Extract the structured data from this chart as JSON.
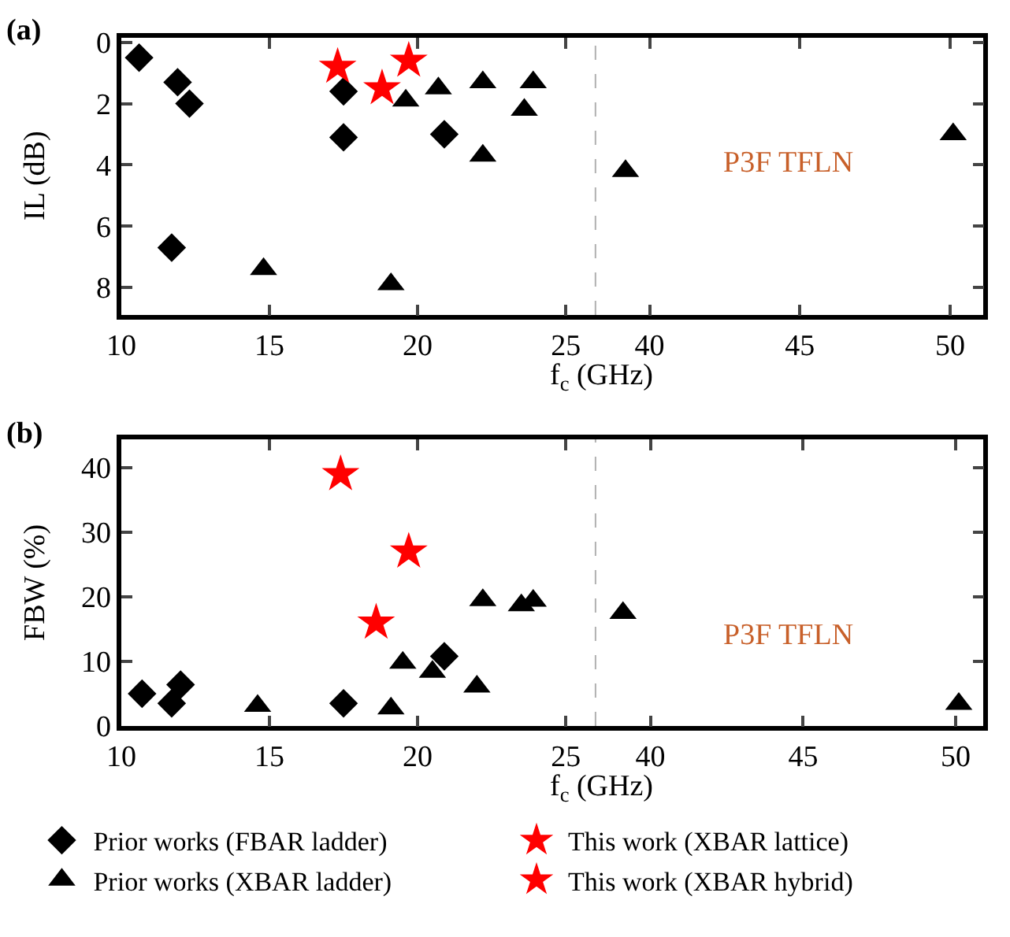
{
  "chart_data": [
    {
      "type": "scatter",
      "title": "(a)",
      "xlabel": "f$_{c}$ (GHz)",
      "ylabel": "IL (dB)",
      "xlim": [
        10,
        25.9
      ],
      "xticks": [
        10,
        15,
        20,
        25
      ],
      "ylim": [
        8.9,
        -0.15
      ],
      "yticks": [
        0,
        2,
        4,
        6,
        8
      ],
      "legend": false,
      "series": [
        {
          "color": "#000000",
          "marker": "diamond",
          "x": [
            10.6,
            11.9,
            12.3,
            17.5,
            17.5,
            20.9,
            11.7
          ],
          "values": [
            0.5,
            1.3,
            2.0,
            1.6,
            3.1,
            3.0,
            6.7
          ]
        },
        {
          "color": "#ff0000",
          "marker": "star",
          "x": [
            17.3,
            19.7
          ],
          "values": [
            0.8,
            0.6
          ]
        },
        {
          "color": "#000000",
          "marker": "triangle",
          "x": [
            14.8,
            19.1,
            19.6,
            20.7,
            22.2,
            22.2,
            23.6,
            23.9
          ],
          "values": [
            7.4,
            7.9,
            1.9,
            1.5,
            1.3,
            3.7,
            2.2,
            1.3
          ]
        },
        {
          "color": "#ff0000",
          "marker": "star",
          "x": [
            18.8
          ],
          "values": [
            1.5
          ]
        }
      ]
    },
    {
      "type": "scatter",
      "xlim": [
        38.1,
        51.1
      ],
      "xticks": [
        40,
        45,
        50
      ],
      "ylim": [
        8.9,
        -0.15
      ],
      "yticks": [
        0,
        2,
        4,
        6,
        8
      ],
      "tick_labels": "x",
      "legend": false,
      "ref_lines": [
        {
          "axis": "x",
          "value": 38.2,
          "color": "#b0b0b0",
          "line_style": "dashed"
        }
      ],
      "annotations": [
        "P3F TFLN"
      ],
      "series": [
        {
          "color": "#000000",
          "marker": "triangle",
          "x": [
            39.2,
            50.1
          ],
          "values": [
            4.2,
            3.0
          ]
        }
      ]
    },
    {
      "type": "scatter",
      "title": "(b)",
      "xlabel": "f$_{c}$ (GHz)",
      "ylabel": "FBW (%)",
      "xlim": [
        10,
        25.9
      ],
      "xticks": [
        10,
        15,
        20,
        25
      ],
      "ylim": [
        0,
        44.4
      ],
      "yticks": [
        0,
        10,
        20,
        30,
        40
      ],
      "legend": "bottom",
      "series": [
        {
          "name": "Prior works (FBAR ladder)",
          "color": "#000000",
          "marker": "diamond",
          "x": [
            10.7,
            11.7,
            12.0,
            17.5,
            20.9
          ],
          "values": [
            5.0,
            3.5,
            6.4,
            3.5,
            10.8
          ]
        },
        {
          "name": "This work (XBAR lattice)",
          "color": "#ff0000",
          "marker": "star",
          "x": [
            17.4,
            19.7
          ],
          "values": [
            39,
            27
          ]
        },
        {
          "name": "Prior works (XBAR ladder)",
          "color": "#000000",
          "marker": "triangle",
          "x": [
            14.6,
            19.1,
            19.5,
            20.5,
            22.2,
            22.0,
            23.5,
            23.9
          ],
          "values": [
            3.1,
            2.7,
            9.8,
            8.4,
            19.5,
            6.1,
            18.7,
            19.4
          ]
        },
        {
          "name": "This work (XBAR hybrid)",
          "color": "#ff0000",
          "marker": "star",
          "x": [
            18.6
          ],
          "values": [
            16
          ]
        }
      ]
    },
    {
      "type": "scatter",
      "xlim": [
        38.1,
        50.9
      ],
      "xticks": [
        40,
        45,
        50
      ],
      "ylim": [
        0,
        44.4
      ],
      "yticks": [
        0,
        10,
        20,
        30,
        40
      ],
      "tick_labels": "x",
      "legend": false,
      "ref_lines": [
        {
          "axis": "x",
          "value": 38.2,
          "color": "#b0b0b0",
          "line_style": "dashed"
        }
      ],
      "annotations": [
        "P3F TFLN"
      ],
      "series": [
        {
          "color": "#000000",
          "marker": "triangle",
          "x": [
            39.1,
            50.1
          ],
          "values": [
            17.5,
            3.4
          ]
        }
      ]
    }
  ]
}
